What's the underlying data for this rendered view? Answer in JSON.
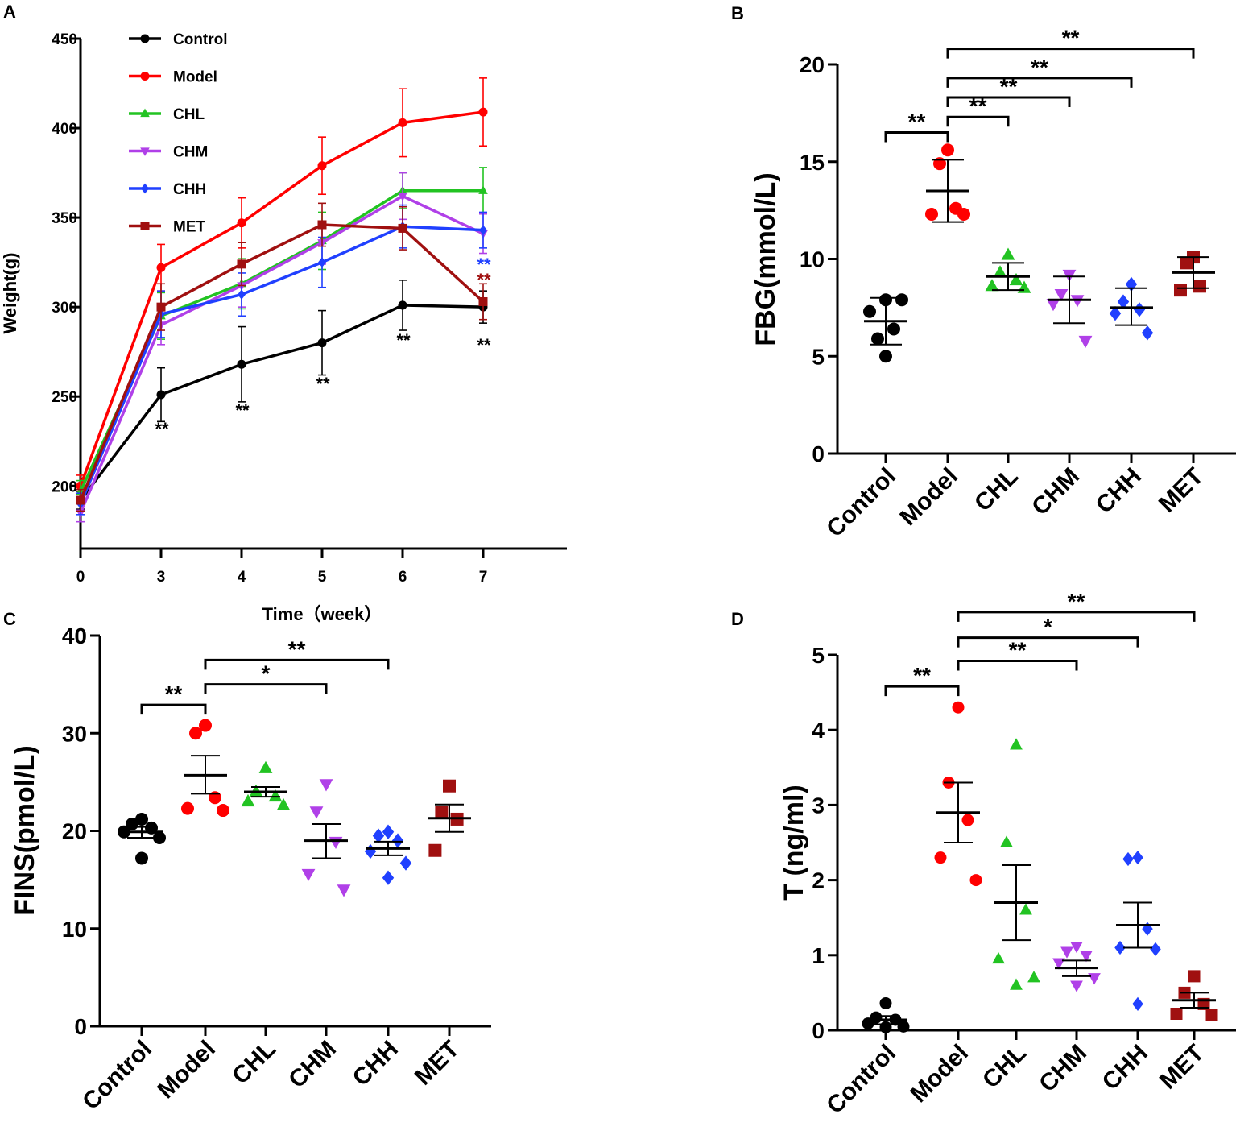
{
  "chart_data": [
    {
      "panel": "A",
      "type": "line",
      "xlabel": "Time（week）",
      "ylabel": "Weight(g)",
      "x": [
        0,
        3,
        4,
        5,
        6,
        7
      ],
      "x_ticks": [
        "0",
        "3",
        "4",
        "5",
        "6",
        "7"
      ],
      "ylim": [
        165,
        450
      ],
      "y_ticks": [
        "200",
        "250",
        "300",
        "350",
        "400",
        "450"
      ],
      "series": [
        {
          "name": "Control",
          "color": "#000000",
          "marker": "circle",
          "values": [
            192,
            251,
            268,
            280,
            301,
            300
          ],
          "err": [
            5,
            15,
            21,
            18,
            14,
            9
          ]
        },
        {
          "name": "Model",
          "color": "#ff0000",
          "marker": "circle",
          "values": [
            200,
            322,
            347,
            379,
            403,
            409
          ],
          "err": [
            6,
            13,
            14,
            16,
            19,
            19
          ]
        },
        {
          "name": "CHL",
          "color": "#22c322",
          "marker": "triangle-up",
          "values": [
            197,
            295,
            313,
            337,
            365,
            365
          ],
          "err": [
            6,
            13,
            14,
            16,
            10,
            13
          ]
        },
        {
          "name": "CHM",
          "color": "#b040e8",
          "marker": "triangle-down",
          "values": [
            185,
            290,
            312,
            336,
            362,
            341
          ],
          "err": [
            5,
            11,
            12,
            12,
            13,
            11
          ]
        },
        {
          "name": "CHH",
          "color": "#2040ff",
          "marker": "diamond",
          "values": [
            190,
            296,
            307,
            325,
            345,
            343
          ],
          "err": [
            6,
            13,
            12,
            14,
            12,
            10
          ]
        },
        {
          "name": "MET",
          "color": "#a01010",
          "marker": "square",
          "values": [
            192,
            300,
            324,
            346,
            344,
            303
          ],
          "err": [
            6,
            13,
            12,
            12,
            12,
            10
          ]
        }
      ],
      "annotations": [
        {
          "x": 3,
          "text": "**",
          "color": "#000000"
        },
        {
          "x": 4,
          "text": "**",
          "color": "#000000"
        },
        {
          "x": 5,
          "text": "**",
          "color": "#000000"
        },
        {
          "x": 6,
          "text": "**",
          "color": "#000000"
        },
        {
          "x": 7,
          "text": "**",
          "color": "#000000"
        },
        {
          "x": 7,
          "text": "**",
          "color": "#a01010"
        },
        {
          "x": 7,
          "text": "**",
          "color": "#2040ff"
        }
      ]
    },
    {
      "panel": "B",
      "type": "scatter",
      "ylabel": "FBG(mmol/L)",
      "categories": [
        "Control",
        "Model",
        "CHL",
        "CHM",
        "CHH",
        "MET"
      ],
      "ylim": [
        0,
        20
      ],
      "y_ticks": [
        "0",
        "5",
        "10",
        "15",
        "20"
      ],
      "groups": [
        {
          "name": "Control",
          "color": "#000000",
          "marker": "circle",
          "points": [
            5.0,
            5.9,
            6.4,
            7.3,
            7.9,
            7.9
          ],
          "mean": 6.8,
          "sem_lo": 5.6,
          "sem_hi": 8.0
        },
        {
          "name": "Model",
          "color": "#ff0000",
          "marker": "circle",
          "points": [
            15.6,
            14.9,
            12.6,
            12.3,
            12.3
          ],
          "mean": 13.5,
          "sem_lo": 11.9,
          "sem_hi": 15.1
        },
        {
          "name": "CHL",
          "color": "#22c322",
          "marker": "triangle-up",
          "points": [
            10.2,
            9.3,
            8.9,
            8.6,
            8.5
          ],
          "mean": 9.1,
          "sem_lo": 8.4,
          "sem_hi": 9.8
        },
        {
          "name": "CHM",
          "color": "#b040e8",
          "marker": "triangle-down",
          "points": [
            9.2,
            8.2,
            7.9,
            7.7,
            5.8
          ],
          "mean": 7.9,
          "sem_lo": 6.7,
          "sem_hi": 9.1
        },
        {
          "name": "CHH",
          "color": "#2040ff",
          "marker": "diamond",
          "points": [
            8.7,
            7.8,
            7.4,
            7.2,
            6.2
          ],
          "mean": 7.5,
          "sem_lo": 6.6,
          "sem_hi": 8.5
        },
        {
          "name": "MET",
          "color": "#a01010",
          "marker": "square",
          "points": [
            10.1,
            9.8,
            8.6,
            8.4
          ],
          "mean": 9.3,
          "sem_lo": 8.5,
          "sem_hi": 10.1
        }
      ],
      "brackets": [
        {
          "from": 0,
          "to": 1,
          "y": 16.5,
          "text": "**"
        },
        {
          "from": 1,
          "to": 2,
          "y": 17.3,
          "text": "**"
        },
        {
          "from": 1,
          "to": 3,
          "y": 18.3,
          "text": "**"
        },
        {
          "from": 1,
          "to": 4,
          "y": 19.3,
          "text": "**"
        },
        {
          "from": 1,
          "to": 5,
          "y": 20.8,
          "text": "**"
        }
      ]
    },
    {
      "panel": "C",
      "type": "scatter",
      "ylabel": "FINS(pmol/L)",
      "categories": [
        "Control",
        "Model",
        "CHL",
        "CHM",
        "CHH",
        "MET"
      ],
      "ylim": [
        0,
        40
      ],
      "y_ticks": [
        "0",
        "10",
        "20",
        "30",
        "40"
      ],
      "groups": [
        {
          "name": "Control",
          "color": "#000000",
          "marker": "circle",
          "points": [
            21.2,
            20.7,
            20.3,
            19.9,
            19.3,
            17.2
          ],
          "mean": 19.9,
          "sem_lo": 19.3,
          "sem_hi": 20.4
        },
        {
          "name": "Model",
          "color": "#ff0000",
          "marker": "circle",
          "points": [
            30.8,
            30.0,
            23.4,
            22.3,
            22.1
          ],
          "mean": 25.7,
          "sem_lo": 23.8,
          "sem_hi": 27.7
        },
        {
          "name": "CHL",
          "color": "#22c322",
          "marker": "triangle-up",
          "points": [
            26.4,
            24.0,
            23.5,
            23.0,
            22.6
          ],
          "mean": 24.0,
          "sem_lo": 23.5,
          "sem_hi": 24.5
        },
        {
          "name": "CHM",
          "color": "#b040e8",
          "marker": "triangle-down",
          "points": [
            24.8,
            22.0,
            18.9,
            15.6,
            14.0
          ],
          "mean": 19.0,
          "sem_lo": 17.2,
          "sem_hi": 20.7
        },
        {
          "name": "CHH",
          "color": "#2040ff",
          "marker": "diamond",
          "points": [
            19.9,
            19.5,
            19.0,
            17.9,
            16.7,
            15.2
          ],
          "mean": 18.2,
          "sem_lo": 17.5,
          "sem_hi": 18.9
        },
        {
          "name": "MET",
          "color": "#a01010",
          "marker": "square",
          "points": [
            24.6,
            21.9,
            21.2,
            18.0
          ],
          "mean": 21.3,
          "sem_lo": 19.9,
          "sem_hi": 22.7
        }
      ],
      "brackets": [
        {
          "from": 0,
          "to": 1,
          "y": 32.9,
          "text": "**"
        },
        {
          "from": 1,
          "to": 3,
          "y": 35.0,
          "text": "*"
        },
        {
          "from": 1,
          "to": 4,
          "y": 37.5,
          "text": "**"
        }
      ]
    },
    {
      "panel": "D",
      "type": "scatter",
      "ylabel": "T (ng/ml)",
      "categories": [
        "Control",
        "Model",
        "CHL",
        "CHM",
        "CHH",
        "MET"
      ],
      "ylim": [
        0,
        5
      ],
      "y_ticks": [
        "0",
        "1",
        "2",
        "3",
        "4",
        "5"
      ],
      "groups": [
        {
          "name": "Control",
          "color": "#000000",
          "marker": "circle",
          "points": [
            0.36,
            0.17,
            0.14,
            0.09,
            0.05,
            0.04
          ],
          "mean": 0.14,
          "sem_lo": 0.08,
          "sem_hi": 0.19
        },
        {
          "name": "Model",
          "color": "#ff0000",
          "marker": "circle",
          "points": [
            4.3,
            3.3,
            2.8,
            2.3,
            2.0
          ],
          "mean": 2.9,
          "sem_lo": 2.5,
          "sem_hi": 3.3
        },
        {
          "name": "CHL",
          "color": "#22c322",
          "marker": "triangle-up",
          "points": [
            3.8,
            2.5,
            1.6,
            0.95,
            0.7,
            0.6
          ],
          "mean": 1.7,
          "sem_lo": 1.2,
          "sem_hi": 2.2
        },
        {
          "name": "CHM",
          "color": "#b040e8",
          "marker": "triangle-down",
          "points": [
            1.12,
            1.05,
            1.0,
            0.9,
            0.7,
            0.6
          ],
          "mean": 0.83,
          "sem_lo": 0.72,
          "sem_hi": 0.93
        },
        {
          "name": "CHH",
          "color": "#2040ff",
          "marker": "diamond",
          "points": [
            2.3,
            2.28,
            1.35,
            1.1,
            1.08,
            0.35
          ],
          "mean": 1.4,
          "sem_lo": 1.1,
          "sem_hi": 1.7
        },
        {
          "name": "MET",
          "color": "#a01010",
          "marker": "square",
          "points": [
            0.72,
            0.5,
            0.35,
            0.22,
            0.2
          ],
          "mean": 0.4,
          "sem_lo": 0.3,
          "sem_hi": 0.5
        }
      ],
      "brackets": [
        {
          "from": 0,
          "to": 1,
          "y": 4.58,
          "text": "**"
        },
        {
          "from": 1,
          "to": 3,
          "y": 4.92,
          "text": "**"
        },
        {
          "from": 1,
          "to": 4,
          "y": 5.23,
          "text": "*"
        },
        {
          "from": 1,
          "to": 5,
          "y": 5.57,
          "text": "**"
        }
      ]
    }
  ]
}
